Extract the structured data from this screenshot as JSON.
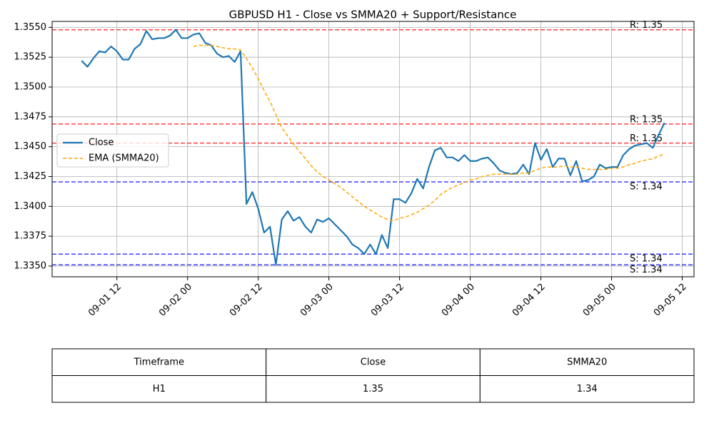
{
  "chart_data": {
    "type": "line",
    "title": "GBPUSD H1 - Close vs SMMA20 + Support/Resistance",
    "x": [
      "09-01 06",
      "09-01 07",
      "09-01 08",
      "09-01 09",
      "09-01 10",
      "09-01 11",
      "09-01 12",
      "09-01 13",
      "09-01 14",
      "09-01 15",
      "09-01 16",
      "09-01 17",
      "09-01 18",
      "09-01 19",
      "09-01 20",
      "09-01 21",
      "09-01 22",
      "09-01 23",
      "09-02 00",
      "09-02 01",
      "09-02 02",
      "09-02 03",
      "09-02 04",
      "09-02 05",
      "09-02 06",
      "09-02 07",
      "09-02 08",
      "09-02 09",
      "09-02 10",
      "09-02 11",
      "09-02 12",
      "09-02 13",
      "09-02 14",
      "09-02 15",
      "09-02 16",
      "09-02 17",
      "09-02 18",
      "09-02 19",
      "09-02 20",
      "09-02 21",
      "09-02 22",
      "09-02 23",
      "09-03 00",
      "09-03 01",
      "09-03 02",
      "09-03 03",
      "09-03 04",
      "09-03 05",
      "09-03 06",
      "09-03 07",
      "09-03 08",
      "09-03 09",
      "09-03 10",
      "09-03 11",
      "09-03 12",
      "09-03 13",
      "09-03 14",
      "09-03 15",
      "09-03 16",
      "09-03 17",
      "09-03 18",
      "09-03 19",
      "09-03 20",
      "09-03 21",
      "09-03 22",
      "09-03 23",
      "09-04 00",
      "09-04 01",
      "09-04 02",
      "09-04 03",
      "09-04 04",
      "09-04 05",
      "09-04 06",
      "09-04 07",
      "09-04 08",
      "09-04 09",
      "09-04 10",
      "09-04 11",
      "09-04 12",
      "09-04 13",
      "09-04 14",
      "09-04 15",
      "09-04 16",
      "09-04 17",
      "09-04 18",
      "09-04 19",
      "09-04 20",
      "09-04 21",
      "09-04 22",
      "09-04 23",
      "09-05 00",
      "09-05 01",
      "09-05 02",
      "09-05 03",
      "09-05 04",
      "09-05 05",
      "09-05 06",
      "09-05 07",
      "09-05 08",
      "09-05 09"
    ],
    "series": [
      {
        "name": "Close",
        "color": "#1f77b4",
        "dashed": false,
        "values": [
          1.3522,
          1.3517,
          1.3524,
          1.353,
          1.3529,
          1.3534,
          1.353,
          1.3523,
          1.3523,
          1.3532,
          1.3536,
          1.3547,
          1.354,
          1.3541,
          1.3541,
          1.3543,
          1.3548,
          1.3541,
          1.3541,
          1.3544,
          1.3545,
          1.3537,
          1.3535,
          1.3528,
          1.3525,
          1.3526,
          1.3521,
          1.353,
          1.3402,
          1.3412,
          1.3398,
          1.3378,
          1.3383,
          1.3351,
          1.3389,
          1.3396,
          1.3388,
          1.3391,
          1.3383,
          1.3378,
          1.3389,
          1.3387,
          1.339,
          1.3385,
          1.338,
          1.3375,
          1.3368,
          1.3365,
          1.336,
          1.3368,
          1.336,
          1.3376,
          1.3365,
          1.3406,
          1.3406,
          1.3403,
          1.3411,
          1.3423,
          1.3415,
          1.3433,
          1.3447,
          1.3449,
          1.3441,
          1.3441,
          1.3438,
          1.3443,
          1.3438,
          1.3438,
          1.344,
          1.3441,
          1.3436,
          1.343,
          1.3428,
          1.3427,
          1.3428,
          1.3435,
          1.3427,
          1.3453,
          1.3439,
          1.3448,
          1.3433,
          1.344,
          1.344,
          1.3426,
          1.3438,
          1.3421,
          1.3422,
          1.3425,
          1.3435,
          1.3432,
          1.3433,
          1.3433,
          1.3443,
          1.3448,
          1.3451,
          1.3452,
          1.3453,
          1.3449,
          1.346,
          1.347
        ]
      },
      {
        "name": "EMA (SMMA20)",
        "color": "#ffa500",
        "dashed": true,
        "values": [
          null,
          null,
          null,
          null,
          null,
          null,
          null,
          null,
          null,
          null,
          null,
          null,
          null,
          null,
          null,
          null,
          null,
          null,
          null,
          1.3534,
          1.3535,
          1.3535,
          1.3535,
          1.3534,
          1.3533,
          1.3532,
          1.3532,
          1.3531,
          1.3524,
          1.3516,
          1.3507,
          1.3497,
          1.3488,
          1.3477,
          1.3466,
          1.3459,
          1.3452,
          1.3446,
          1.344,
          1.3434,
          1.3429,
          1.3425,
          1.3422,
          1.3419,
          1.3416,
          1.3412,
          1.3408,
          1.3404,
          1.34,
          1.3397,
          1.3394,
          1.3391,
          1.3389,
          1.3388,
          1.339,
          1.3391,
          1.3393,
          1.3395,
          1.3398,
          1.3401,
          1.3405,
          1.341,
          1.3413,
          1.3416,
          1.3418,
          1.342,
          1.3422,
          1.3423,
          1.3425,
          1.3426,
          1.3427,
          1.3427,
          1.3427,
          1.3427,
          1.3427,
          1.3428,
          1.3428,
          1.343,
          1.3432,
          1.3433,
          1.3433,
          1.3433,
          1.3434,
          1.3433,
          1.3433,
          1.3432,
          1.3431,
          1.3431,
          1.3431,
          1.3431,
          1.3432,
          1.3432,
          1.3433,
          1.3435,
          1.3436,
          1.3438,
          1.3439,
          1.344,
          1.3442,
          1.3444
        ]
      }
    ],
    "resistance": {
      "color": "#ff0000",
      "levels": [
        {
          "value": 1.3548,
          "label": "R: 1.35"
        },
        {
          "value": 1.3469,
          "label": "R: 1.35"
        },
        {
          "value": 1.3453,
          "label": "R: 1.35"
        }
      ]
    },
    "support": {
      "color": "#0000ff",
      "levels": [
        {
          "value": 1.34205,
          "label": "S: 1.34"
        },
        {
          "value": 1.336,
          "label": "S: 1.34"
        },
        {
          "value": 1.3351,
          "label": "S: 1.34"
        }
      ]
    },
    "xlim": [
      "09-01 01",
      "09-05 14"
    ],
    "xticks": [
      "09-01 12",
      "09-02 00",
      "09-02 12",
      "09-03 00",
      "09-03 12",
      "09-04 00",
      "09-04 12",
      "09-05 00",
      "09-05 12"
    ],
    "ylim": [
      1.3341,
      1.3555
    ],
    "yticks": [
      {
        "value": 1.335,
        "label": "1.3350"
      },
      {
        "value": 1.3375,
        "label": "1.3375"
      },
      {
        "value": 1.34,
        "label": "1.3400"
      },
      {
        "value": 1.3425,
        "label": "1.3425"
      },
      {
        "value": 1.345,
        "label": "1.3450"
      },
      {
        "value": 1.3475,
        "label": "1.3475"
      },
      {
        "value": 1.35,
        "label": "1.3500"
      },
      {
        "value": 1.3525,
        "label": "1.3525"
      },
      {
        "value": 1.355,
        "label": "1.3550"
      }
    ],
    "grid": true,
    "legend": "center left"
  },
  "table": {
    "columns": [
      "Timeframe",
      "Close",
      "SMMA20"
    ],
    "rows": [
      [
        "H1",
        "1.35",
        "1.34"
      ]
    ]
  }
}
